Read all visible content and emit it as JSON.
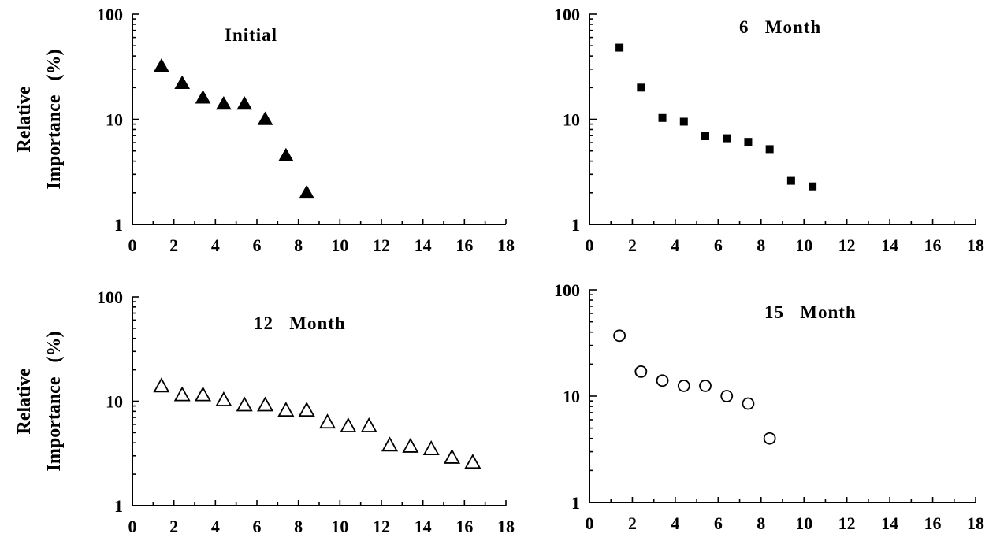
{
  "chart_data": [
    {
      "type": "scatter",
      "title": "Initial",
      "ylabel_line1": "Relative",
      "ylabel_line2": "Importance   (%)",
      "xlabel": "",
      "y_scale": "log",
      "xlim": [
        0,
        18
      ],
      "ylim": [
        1,
        100
      ],
      "x_ticks": [
        "0",
        "2",
        "4",
        "6",
        "8",
        "10",
        "12",
        "14",
        "16",
        "18"
      ],
      "y_ticks": [
        "1",
        "10",
        "100"
      ],
      "marker": "filled-triangle",
      "color": "#000000",
      "x": [
        1.4,
        2.4,
        3.4,
        4.4,
        5.4,
        6.4,
        7.4,
        8.4
      ],
      "y": [
        32,
        22,
        16,
        14,
        14,
        10,
        4.5,
        2
      ]
    },
    {
      "type": "scatter",
      "title": "6   Month",
      "xlabel": "",
      "y_scale": "log",
      "xlim": [
        0,
        18
      ],
      "ylim": [
        1,
        100
      ],
      "x_ticks": [
        "0",
        "2",
        "4",
        "6",
        "8",
        "10",
        "12",
        "14",
        "16",
        "18"
      ],
      "y_ticks": [
        "1",
        "10",
        "100"
      ],
      "marker": "filled-square",
      "color": "#000000",
      "x": [
        1.4,
        2.4,
        3.4,
        4.4,
        5.4,
        6.4,
        7.4,
        8.4,
        9.4,
        10.4
      ],
      "y": [
        48,
        20,
        10.3,
        9.5,
        6.9,
        6.6,
        6.1,
        5.2,
        2.6,
        2.3
      ]
    },
    {
      "type": "scatter",
      "title": "12   Month",
      "ylabel_line1": "Relative",
      "ylabel_line2": "Importance   (%)",
      "xlabel": "",
      "y_scale": "log",
      "xlim": [
        0,
        18
      ],
      "ylim": [
        1,
        100
      ],
      "x_ticks": [
        "0",
        "2",
        "4",
        "6",
        "8",
        "10",
        "12",
        "14",
        "16",
        "18"
      ],
      "y_ticks": [
        "1",
        "10",
        "100"
      ],
      "marker": "open-triangle",
      "color": "#000000",
      "x": [
        1.4,
        2.4,
        3.4,
        4.4,
        5.4,
        6.4,
        7.4,
        8.4,
        9.4,
        10.4,
        11.4,
        12.4,
        13.4,
        14.4,
        15.4,
        16.4
      ],
      "y": [
        14,
        11.5,
        11.5,
        10.3,
        9.2,
        9.2,
        8.2,
        8.2,
        6.3,
        5.8,
        5.8,
        3.8,
        3.7,
        3.5,
        2.9,
        2.6
      ]
    },
    {
      "type": "scatter",
      "title": "15   Month",
      "xlabel": "",
      "y_scale": "log",
      "xlim": [
        0,
        18
      ],
      "ylim": [
        1,
        100
      ],
      "x_ticks": [
        "0",
        "2",
        "4",
        "6",
        "8",
        "10",
        "12",
        "14",
        "16",
        "18"
      ],
      "y_ticks": [
        "1",
        "10",
        "100"
      ],
      "marker": "open-circle",
      "color": "#000000",
      "x": [
        1.4,
        2.4,
        3.4,
        4.4,
        5.4,
        6.4,
        7.4,
        8.4
      ],
      "y": [
        37,
        17,
        14,
        12.5,
        12.5,
        10,
        8.5,
        4
      ]
    }
  ]
}
